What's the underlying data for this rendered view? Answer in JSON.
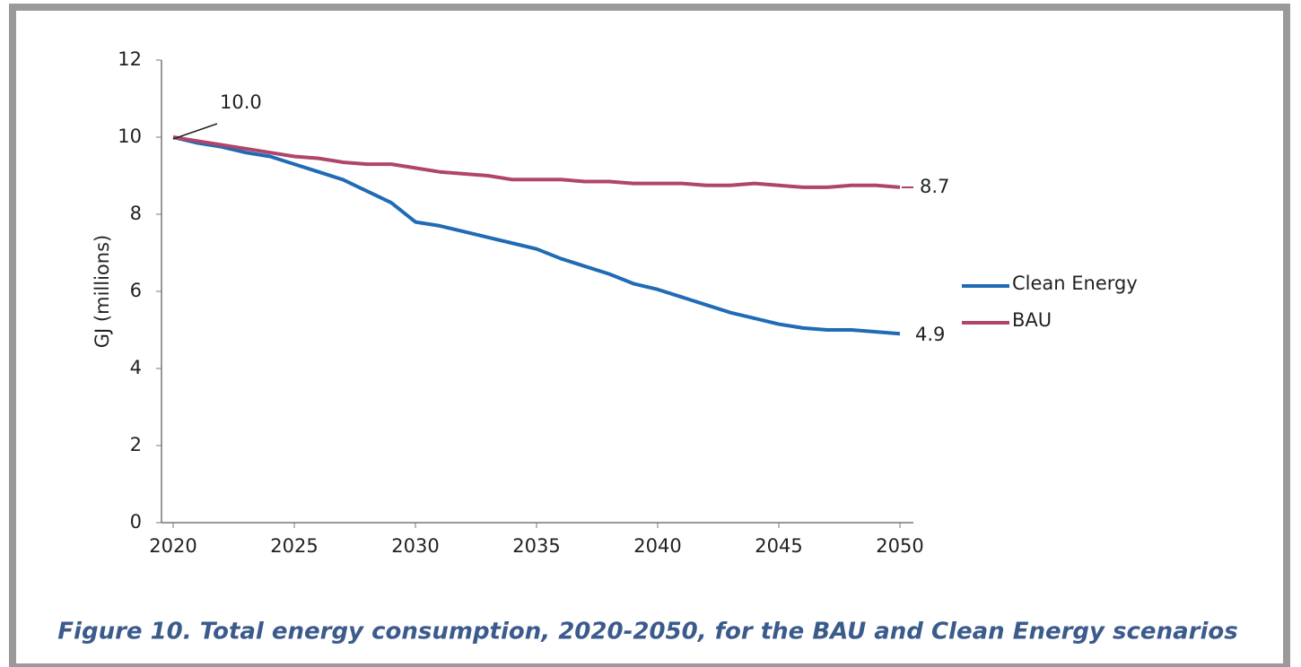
{
  "chart_data": {
    "type": "line",
    "title": "Figure 10. Total energy consumption, 2020-2050, for the BAU and Clean Energy scenarios",
    "y_label": "GJ (millions)",
    "x": [
      2020,
      2021,
      2022,
      2023,
      2024,
      2025,
      2026,
      2027,
      2028,
      2029,
      2030,
      2031,
      2032,
      2033,
      2034,
      2035,
      2036,
      2037,
      2038,
      2039,
      2040,
      2041,
      2042,
      2043,
      2044,
      2045,
      2046,
      2047,
      2048,
      2049,
      2050
    ],
    "series": [
      {
        "name": "Clean Energy",
        "color": "#1f6bb5",
        "values": [
          10.0,
          9.85,
          9.75,
          9.6,
          9.5,
          9.3,
          9.1,
          8.9,
          8.6,
          8.3,
          7.8,
          7.7,
          7.55,
          7.4,
          7.25,
          7.1,
          6.85,
          6.65,
          6.45,
          6.2,
          6.05,
          5.85,
          5.65,
          5.45,
          5.3,
          5.15,
          5.05,
          5.0,
          5.0,
          4.95,
          4.9
        ]
      },
      {
        "name": "BAU",
        "color": "#b0456b",
        "values": [
          10.0,
          9.9,
          9.8,
          9.7,
          9.6,
          9.5,
          9.45,
          9.35,
          9.3,
          9.3,
          9.2,
          9.1,
          9.05,
          9.0,
          8.9,
          8.9,
          8.9,
          8.85,
          8.85,
          8.8,
          8.8,
          8.8,
          8.75,
          8.75,
          8.8,
          8.75,
          8.7,
          8.7,
          8.75,
          8.75,
          8.7
        ]
      }
    ],
    "annotations": [
      "10.0",
      "8.7",
      "4.9"
    ],
    "xlim": [
      2020,
      2050
    ],
    "xticks": [
      2020,
      2025,
      2030,
      2035,
      2040,
      2045,
      2050
    ],
    "ylim": [
      0,
      12
    ],
    "yticks": [
      0,
      2,
      4,
      6,
      8,
      10,
      12
    ],
    "grid": false,
    "legend": "right"
  }
}
